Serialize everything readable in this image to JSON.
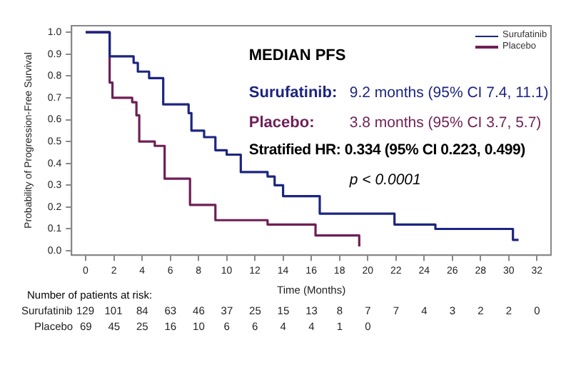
{
  "chart_data": {
    "type": "step",
    "xlabel": "Time (Months)",
    "ylabel": "Probability of Progression-Free Survival",
    "xlim": [
      -1,
      33
    ],
    "xticks": [
      0,
      2,
      4,
      6,
      8,
      10,
      12,
      14,
      16,
      18,
      20,
      22,
      24,
      26,
      28,
      30,
      32
    ],
    "ylim": [
      -0.02,
      1.03
    ],
    "yticks": [
      {
        "value": 0,
        "label": "0.0"
      },
      0.1,
      0.2,
      0.3,
      0.4,
      0.5,
      0.6,
      0.7,
      0.8,
      0.9,
      {
        "value": 1,
        "label": "1.0"
      }
    ],
    "grid": false,
    "legend": "top right",
    "marker": "none",
    "line_style": "solid",
    "series": [
      {
        "name": "Surufatinib",
        "color": "#1c2580",
        "x": [
          0,
          1.7,
          3.4,
          3.7,
          4.5,
          5.5,
          7.3,
          7.5,
          8.4,
          9.2,
          10.0,
          11.0,
          12.9,
          13.4,
          14.0,
          16.6,
          21.9,
          24.8,
          30.3,
          30.7
        ],
        "values": [
          1.0,
          0.89,
          0.86,
          0.82,
          0.79,
          0.67,
          0.63,
          0.55,
          0.52,
          0.46,
          0.44,
          0.36,
          0.34,
          0.3,
          0.25,
          0.17,
          0.12,
          0.1,
          0.05,
          0.05
        ]
      },
      {
        "name": "Placebo",
        "color": "#6e1f55",
        "x": [
          0,
          1.7,
          1.9,
          3.3,
          3.6,
          3.8,
          4.9,
          5.6,
          7.4,
          9.2,
          12.9,
          16.3,
          19.4
        ],
        "values": [
          1.0,
          0.77,
          0.7,
          0.68,
          0.62,
          0.5,
          0.48,
          0.33,
          0.21,
          0.14,
          0.12,
          0.07,
          0.02
        ]
      }
    ],
    "annotations": [
      "MEDIAN PFS",
      "Surufatinib:",
      "9.2 months (95% CI 7.4, 11.1)",
      "Placebo:",
      "3.8 months (95% CI 3.7, 5.7)",
      "Stratified HR: 0.334 (95% CI 0.223, 0.499)",
      "p < 0.0001",
      "Number of patients at risk:",
      "Surufatinib 129 101 84 63 46 37 25 15 13 8 7 7 4 3 2 2 0",
      "Placebo 69 45 25 16 10 6 6 4 4 1 0"
    ]
  }
}
